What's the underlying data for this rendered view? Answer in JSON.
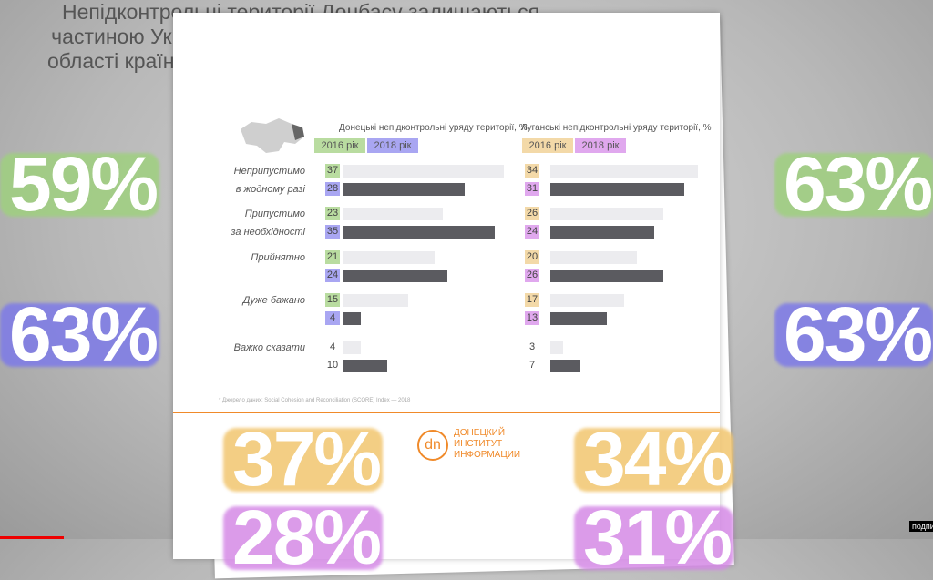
{
  "title": "Непідконтрольні території Донбасу залишаються\nчастиною України з таким самим статусом, як і інші\nобласті країни, за умови здійснення децентралізації",
  "chart_data": [
    {
      "type": "bar",
      "title": "Донецькі непідконтрольні уряду території, %",
      "categories": [
        "Неприпустимо\nв жодному разі",
        "Припустимо\nза необхідності",
        "Прийнятно",
        "Дуже бажано",
        "Важко сказати"
      ],
      "series": [
        {
          "name": "2016 рік",
          "color": "#ececef",
          "label_color": "#b9dca0",
          "values": [
            37,
            23,
            21,
            15,
            4
          ]
        },
        {
          "name": "2018 рік",
          "color": "#5b5b60",
          "label_color": "#a9a6f2",
          "values": [
            28,
            35,
            24,
            4,
            10
          ]
        }
      ]
    },
    {
      "type": "bar",
      "title": "Луганські непідконтрольні уряду території, %",
      "series": [
        {
          "name": "2016 рік",
          "color": "#ececef",
          "label_color": "#f3d9a8",
          "values": [
            34,
            26,
            20,
            17,
            3
          ]
        },
        {
          "name": "2018 рік",
          "color": "#5b5b60",
          "label_color": "#e0a8ee",
          "values": [
            31,
            24,
            26,
            13,
            7
          ]
        }
      ]
    }
  ],
  "big_numbers": [
    {
      "text": "59%",
      "color": "#9fd07f"
    },
    {
      "text": "63%",
      "color": "#7d7ae8"
    },
    {
      "text": "63%",
      "color": "#9fd07f"
    },
    {
      "text": "63%",
      "color": "#7d7ae8"
    },
    {
      "text": "37%",
      "color": "#f2c66f"
    },
    {
      "text": "28%",
      "color": "#d58ae6"
    },
    {
      "text": "34%",
      "color": "#f2c66f"
    },
    {
      "text": "31%",
      "color": "#d58ae6"
    }
  ],
  "footnote": "* Джерело даних: Social Cohesion and Reconciliation (SCORE) Index — 2018",
  "logo": {
    "mark": "dn",
    "name": "ДОНЕЦКИЙ\nИНСТИТУТ\nИНФОРМАЦИИ"
  },
  "overlay": "подпи"
}
